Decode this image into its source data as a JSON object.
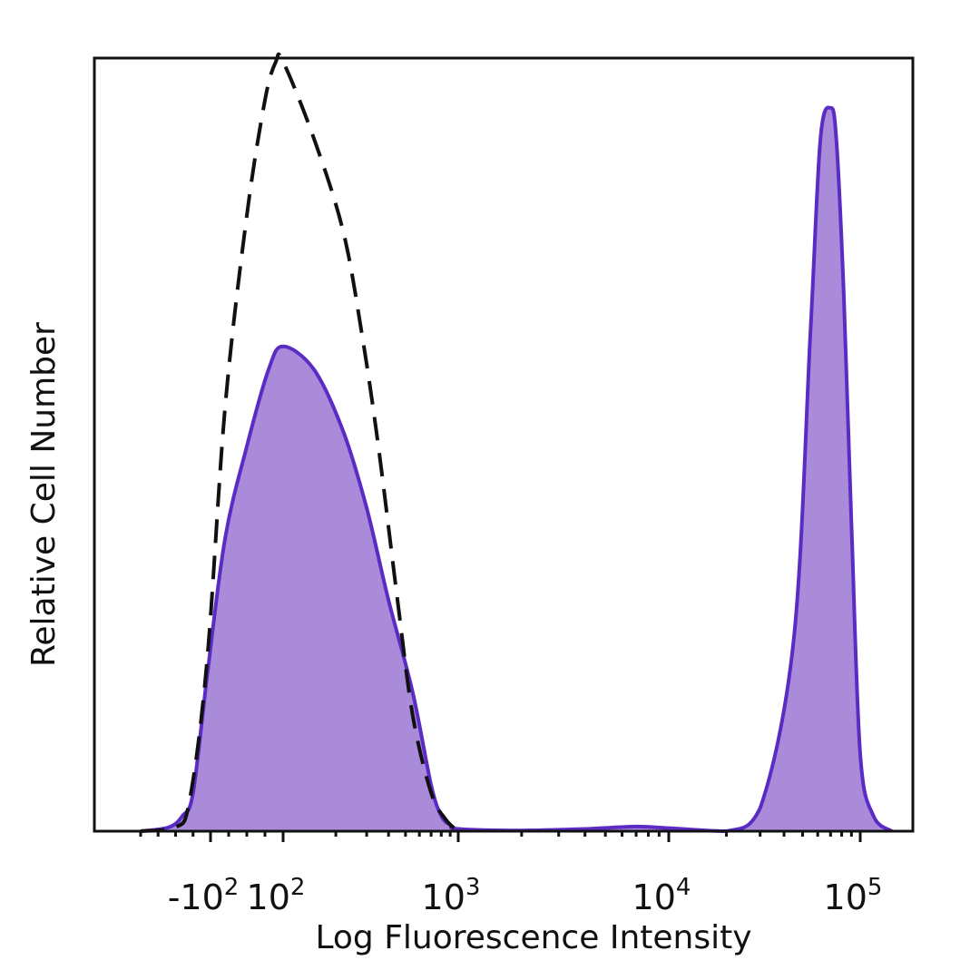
{
  "chart_data": {
    "type": "area",
    "xlabel": "Log Fluorescence Intensity",
    "ylabel": "Relative Cell Number",
    "x_scale": "biexponential",
    "xlim": [
      -300,
      150000
    ],
    "ylim": [
      0,
      100
    ],
    "x_ticks": [
      {
        "value": -100,
        "base": "-10",
        "exp": "2"
      },
      {
        "value": 100,
        "base": "10",
        "exp": "2"
      },
      {
        "value": 1000,
        "base": "10",
        "exp": "3"
      },
      {
        "value": 10000,
        "base": "10",
        "exp": "4"
      },
      {
        "value": 100000,
        "base": "10",
        "exp": "5"
      }
    ],
    "grid": false,
    "legend": "none",
    "series": [
      {
        "style": "filled",
        "color": "#5a2cc4",
        "fill": "#a98bd9",
        "x": [
          -300,
          -220,
          -180,
          -150,
          -110,
          -60,
          0,
          60,
          100,
          150,
          220,
          300,
          400,
          550,
          700,
          800,
          900,
          1000,
          2000,
          4000,
          7000,
          10000,
          20000,
          30000,
          45000,
          55000,
          62000,
          70000,
          75000,
          82000,
          90000,
          100000,
          115000,
          140000
        ],
        "y": [
          0,
          0.5,
          2,
          5,
          20,
          38,
          50,
          60,
          63,
          60,
          52,
          42,
          30,
          18,
          6,
          2,
          0.8,
          0.3,
          0.1,
          0.3,
          0.6,
          0.4,
          0,
          3,
          25,
          65,
          90,
          94,
          90,
          70,
          40,
          10,
          2,
          0
        ]
      },
      {
        "style": "dashed",
        "color": "#111111",
        "x": [
          -300,
          -200,
          -160,
          -110,
          -60,
          0,
          50,
          80,
          100,
          150,
          220,
          280,
          350,
          450,
          550,
          700,
          850,
          1000
        ],
        "y": [
          0,
          0.5,
          4,
          22,
          55,
          80,
          95,
          100,
          100,
          90,
          78,
          65,
          50,
          30,
          15,
          5,
          1.5,
          0
        ]
      }
    ]
  }
}
